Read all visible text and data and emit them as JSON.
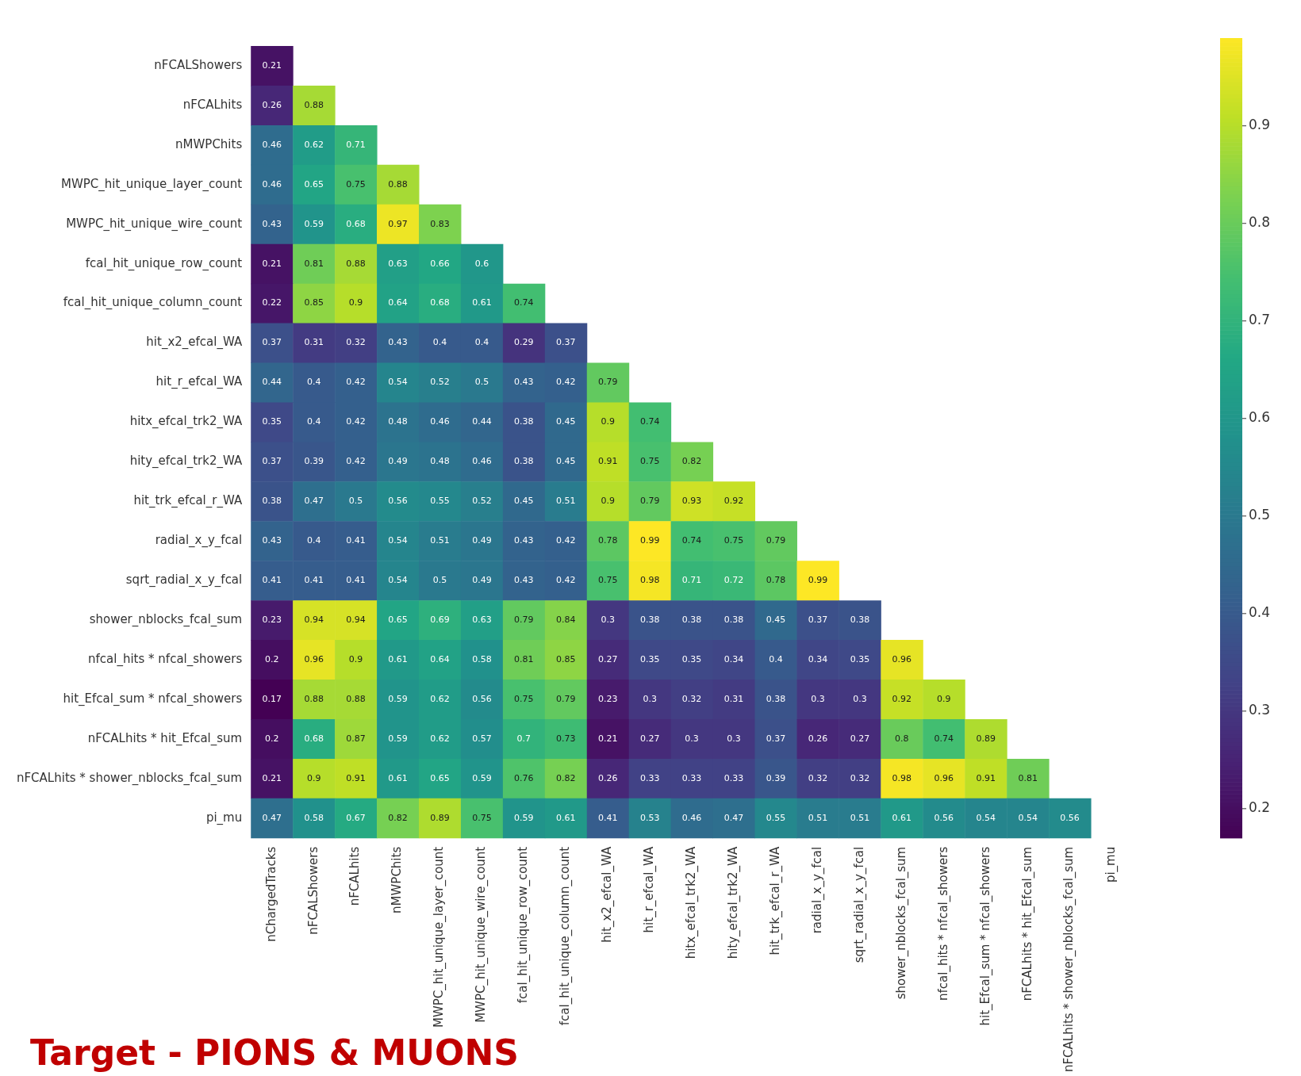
{
  "chart_data": {
    "type": "heatmap",
    "categories": [
      "nChargedTracks",
      "nFCALShowers",
      "nFCALhits",
      "nMWPChits",
      "MWPC_hit_unique_layer_count",
      "MWPC_hit_unique_wire_count",
      "fcal_hit_unique_row_count",
      "fcal_hit_unique_column_count",
      "hit_x2_efcal_WA",
      "hit_r_efcal_WA",
      "hitx_efcal_trk2_WA",
      "hity_efcal_trk2_WA",
      "hit_trk_efcal_r_WA",
      "radial_x_y_fcal",
      "sqrt_radial_x_y_fcal",
      "shower_nblocks_fcal_sum",
      "nfcal_hits * nfcal_showers",
      "hit_Efcal_sum * nfcal_showers",
      "nFCALhits * hit_Efcal_sum",
      "nFCALhits * shower_nblocks_fcal_sum",
      "pi_mu"
    ],
    "y_categories": [
      "nFCALShowers",
      "nFCALhits",
      "nMWPChits",
      "MWPC_hit_unique_layer_count",
      "MWPC_hit_unique_wire_count",
      "fcal_hit_unique_row_count",
      "fcal_hit_unique_column_count",
      "hit_x2_efcal_WA",
      "hit_r_efcal_WA",
      "hitx_efcal_trk2_WA",
      "hity_efcal_trk2_WA",
      "hit_trk_efcal_r_WA",
      "radial_x_y_fcal",
      "sqrt_radial_x_y_fcal",
      "shower_nblocks_fcal_sum",
      "nfcal_hits * nfcal_showers",
      "hit_Efcal_sum * nfcal_showers",
      "nFCALhits * hit_Efcal_sum",
      "nFCALhits * shower_nblocks_fcal_sum",
      "pi_mu"
    ],
    "cells": [
      [
        0.21,
        null,
        null,
        null,
        null,
        null,
        null,
        null,
        null,
        null,
        null,
        null,
        null,
        null,
        null,
        null,
        null,
        null,
        null,
        null,
        null
      ],
      [
        0.26,
        0.88,
        null,
        null,
        null,
        null,
        null,
        null,
        null,
        null,
        null,
        null,
        null,
        null,
        null,
        null,
        null,
        null,
        null,
        null,
        null
      ],
      [
        0.46,
        0.62,
        0.71,
        null,
        null,
        null,
        null,
        null,
        null,
        null,
        null,
        null,
        null,
        null,
        null,
        null,
        null,
        null,
        null,
        null,
        null
      ],
      [
        0.46,
        0.65,
        0.75,
        0.88,
        null,
        null,
        null,
        null,
        null,
        null,
        null,
        null,
        null,
        null,
        null,
        null,
        null,
        null,
        null,
        null,
        null
      ],
      [
        0.43,
        0.59,
        0.68,
        0.97,
        0.83,
        null,
        null,
        null,
        null,
        null,
        null,
        null,
        null,
        null,
        null,
        null,
        null,
        null,
        null,
        null,
        null
      ],
      [
        0.21,
        0.81,
        0.88,
        0.63,
        0.66,
        0.6,
        null,
        null,
        null,
        null,
        null,
        null,
        null,
        null,
        null,
        null,
        null,
        null,
        null,
        null,
        null
      ],
      [
        0.22,
        0.85,
        0.9,
        0.64,
        0.68,
        0.61,
        0.74,
        null,
        null,
        null,
        null,
        null,
        null,
        null,
        null,
        null,
        null,
        null,
        null,
        null,
        null
      ],
      [
        0.37,
        0.31,
        0.32,
        0.43,
        0.4,
        0.4,
        0.29,
        0.37,
        null,
        null,
        null,
        null,
        null,
        null,
        null,
        null,
        null,
        null,
        null,
        null,
        null
      ],
      [
        0.44,
        0.4,
        0.42,
        0.54,
        0.52,
        0.5,
        0.43,
        0.42,
        0.79,
        null,
        null,
        null,
        null,
        null,
        null,
        null,
        null,
        null,
        null,
        null,
        null
      ],
      [
        0.35,
        0.4,
        0.42,
        0.48,
        0.46,
        0.44,
        0.38,
        0.45,
        0.9,
        0.74,
        null,
        null,
        null,
        null,
        null,
        null,
        null,
        null,
        null,
        null,
        null
      ],
      [
        0.37,
        0.39,
        0.42,
        0.49,
        0.48,
        0.46,
        0.38,
        0.45,
        0.91,
        0.75,
        0.82,
        null,
        null,
        null,
        null,
        null,
        null,
        null,
        null,
        null,
        null
      ],
      [
        0.38,
        0.47,
        0.5,
        0.56,
        0.55,
        0.52,
        0.45,
        0.51,
        0.9,
        0.79,
        0.93,
        0.92,
        null,
        null,
        null,
        null,
        null,
        null,
        null,
        null,
        null
      ],
      [
        0.43,
        0.4,
        0.41,
        0.54,
        0.51,
        0.49,
        0.43,
        0.42,
        0.78,
        0.99,
        0.74,
        0.75,
        0.79,
        null,
        null,
        null,
        null,
        null,
        null,
        null,
        null
      ],
      [
        0.41,
        0.41,
        0.41,
        0.54,
        0.5,
        0.49,
        0.43,
        0.42,
        0.75,
        0.98,
        0.71,
        0.72,
        0.78,
        0.99,
        null,
        null,
        null,
        null,
        null,
        null,
        null
      ],
      [
        0.23,
        0.94,
        0.94,
        0.65,
        0.69,
        0.63,
        0.79,
        0.84,
        0.3,
        0.38,
        0.38,
        0.38,
        0.45,
        0.37,
        0.38,
        null,
        null,
        null,
        null,
        null,
        null
      ],
      [
        0.2,
        0.96,
        0.9,
        0.61,
        0.64,
        0.58,
        0.81,
        0.85,
        0.27,
        0.35,
        0.35,
        0.34,
        0.4,
        0.34,
        0.35,
        0.96,
        null,
        null,
        null,
        null,
        null
      ],
      [
        0.17,
        0.88,
        0.88,
        0.59,
        0.62,
        0.56,
        0.75,
        0.79,
        0.23,
        0.3,
        0.32,
        0.31,
        0.38,
        0.3,
        0.3,
        0.92,
        0.9,
        null,
        null,
        null,
        null
      ],
      [
        0.2,
        0.68,
        0.87,
        0.59,
        0.62,
        0.57,
        0.7,
        0.73,
        0.21,
        0.27,
        0.3,
        0.3,
        0.37,
        0.26,
        0.27,
        0.8,
        0.74,
        0.89,
        null,
        null,
        null
      ],
      [
        0.21,
        0.9,
        0.91,
        0.61,
        0.65,
        0.59,
        0.76,
        0.82,
        0.26,
        0.33,
        0.33,
        0.33,
        0.39,
        0.32,
        0.32,
        0.98,
        0.96,
        0.91,
        0.81,
        null,
        null
      ],
      [
        0.47,
        0.58,
        0.67,
        0.82,
        0.89,
        0.75,
        0.59,
        0.61,
        0.41,
        0.53,
        0.46,
        0.47,
        0.55,
        0.51,
        0.51,
        0.61,
        0.56,
        0.54,
        0.54,
        0.56,
        null
      ]
    ],
    "clim": [
      0.17,
      0.99
    ],
    "cticks": [
      0.2,
      0.3,
      0.4,
      0.5,
      0.6,
      0.7,
      0.8,
      0.9
    ],
    "data_labels": true,
    "annotations": [
      "Target - PIONS & MUONS"
    ]
  }
}
